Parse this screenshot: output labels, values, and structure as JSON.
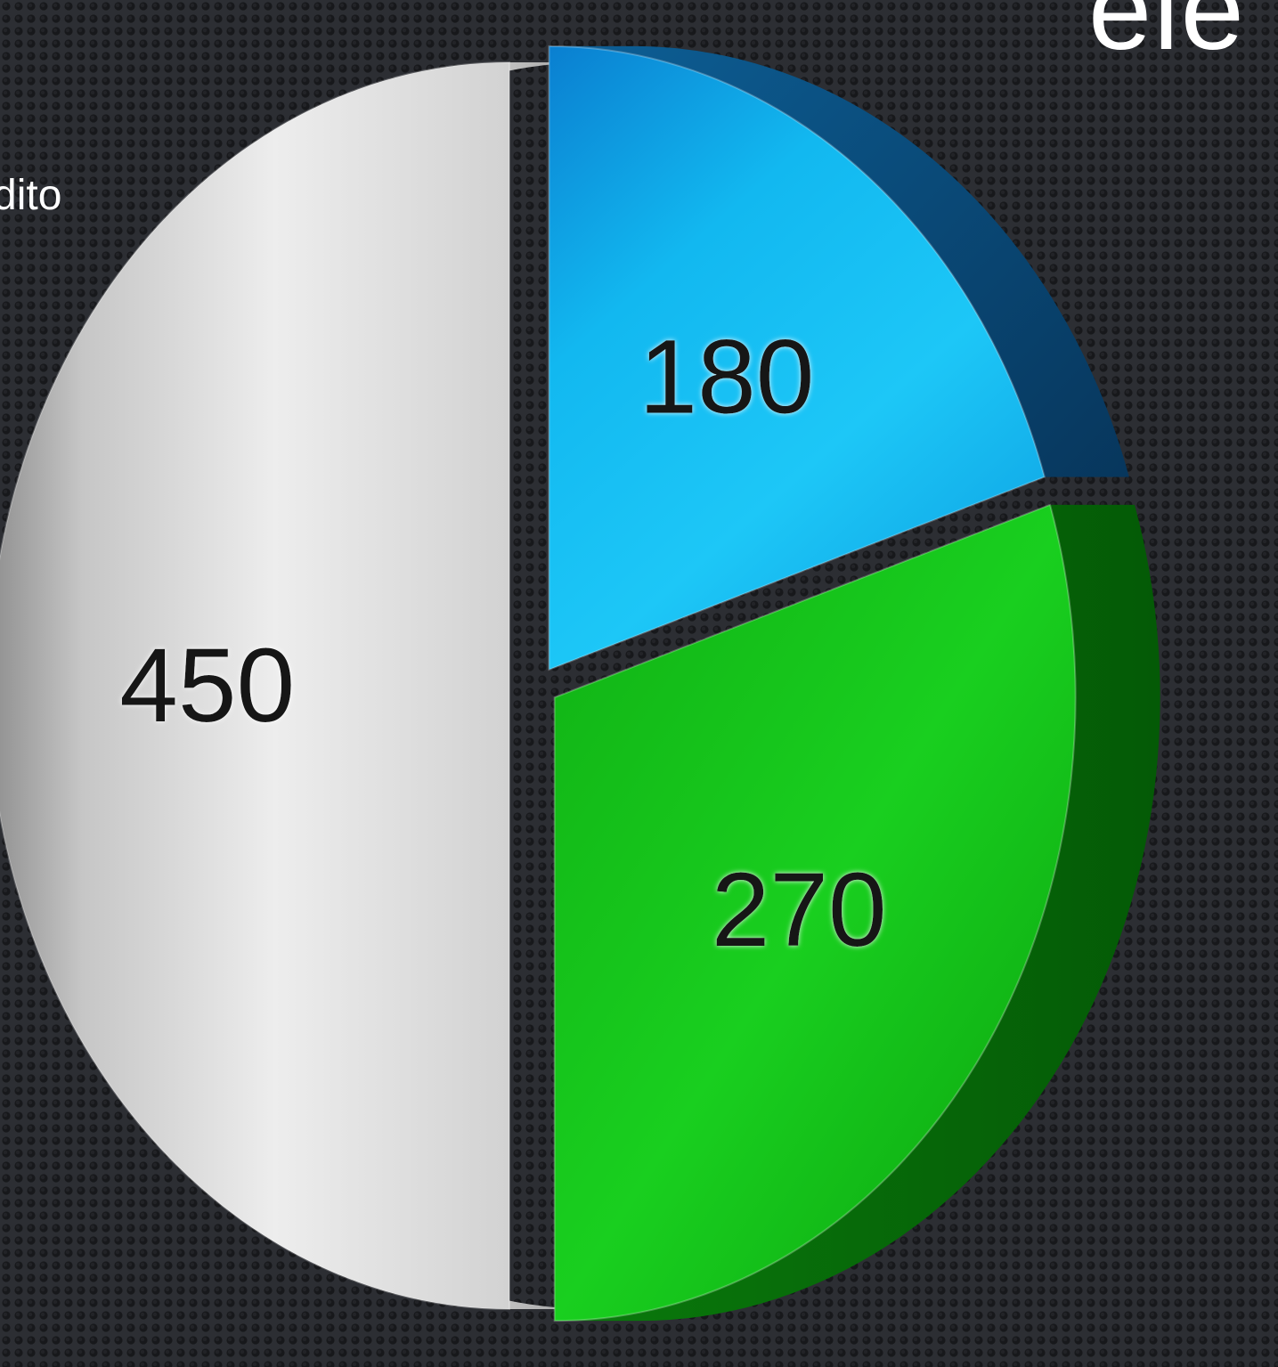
{
  "texts": {
    "left_fragment": "dito",
    "right_fragment": "ele"
  },
  "chart_data": {
    "type": "pie",
    "style": "3d",
    "slices": [
      {
        "label": "450",
        "value": 450,
        "color": "#c9c9c9"
      },
      {
        "label": "180",
        "value": 180,
        "color": "#1fc8f5"
      },
      {
        "label": "270",
        "value": 270,
        "color": "#15c21a"
      }
    ]
  }
}
